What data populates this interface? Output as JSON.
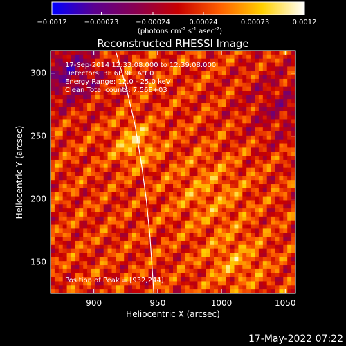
{
  "chart_data": {
    "type": "heatmap",
    "title": "Reconstructed RHESSI Image",
    "xlabel": "Heliocentric X (arcsec)",
    "ylabel": "Heliocentric Y (arcsec)",
    "xlim": [
      866,
      1058
    ],
    "ylim": [
      125,
      318
    ],
    "x_ticks": [
      900,
      950,
      1000,
      1050
    ],
    "x_tick_labels": [
      "900",
      "950",
      "1000",
      "1050"
    ],
    "y_ticks": [
      150,
      200,
      250,
      300
    ],
    "y_tick_labels": [
      "150",
      "200",
      "250",
      "300"
    ],
    "colorbar": {
      "label_text": "(photons cm",
      "label_sup1": "-2",
      "label_mid": " s",
      "label_sup2": "-1",
      "label_mid2": " asec",
      "label_sup3": "-2",
      "label_end": ")",
      "min": -0.0012,
      "max": 0.0012,
      "ticks": [
        -0.0012,
        -0.00073,
        -0.00024,
        0.00024,
        0.00073,
        0.0012
      ],
      "tick_labels": [
        "−0.0012",
        "−0.00073",
        "−0.00024",
        "0.00024",
        "0.00073",
        "0.0012"
      ],
      "colormap_stops": [
        "#0000ff",
        "#5a0090",
        "#8a0050",
        "#c80000",
        "#ff6000",
        "#ffd000",
        "#ffffff"
      ]
    },
    "annotations": [
      "17-Sep-2014 12:33:08.000 to 12:39:08.000",
      "Detectors: 3F 6F 9F, Att 0",
      "Energy Range: 12.0 - 25.0 keV",
      "Clean     Total counts: 7.56E+03"
    ],
    "peak_label": "Position of Peak = [932,244]",
    "peak_position": [
      932,
      244
    ],
    "limb_points": [
      [
        917,
        318
      ],
      [
        925,
        290
      ],
      [
        932,
        260
      ],
      [
        937,
        230
      ],
      [
        941,
        200
      ],
      [
        944,
        170
      ],
      [
        946,
        140
      ],
      [
        947,
        125
      ]
    ],
    "grid": false
  },
  "footer": {
    "date": "17-May-2022 07:22"
  }
}
